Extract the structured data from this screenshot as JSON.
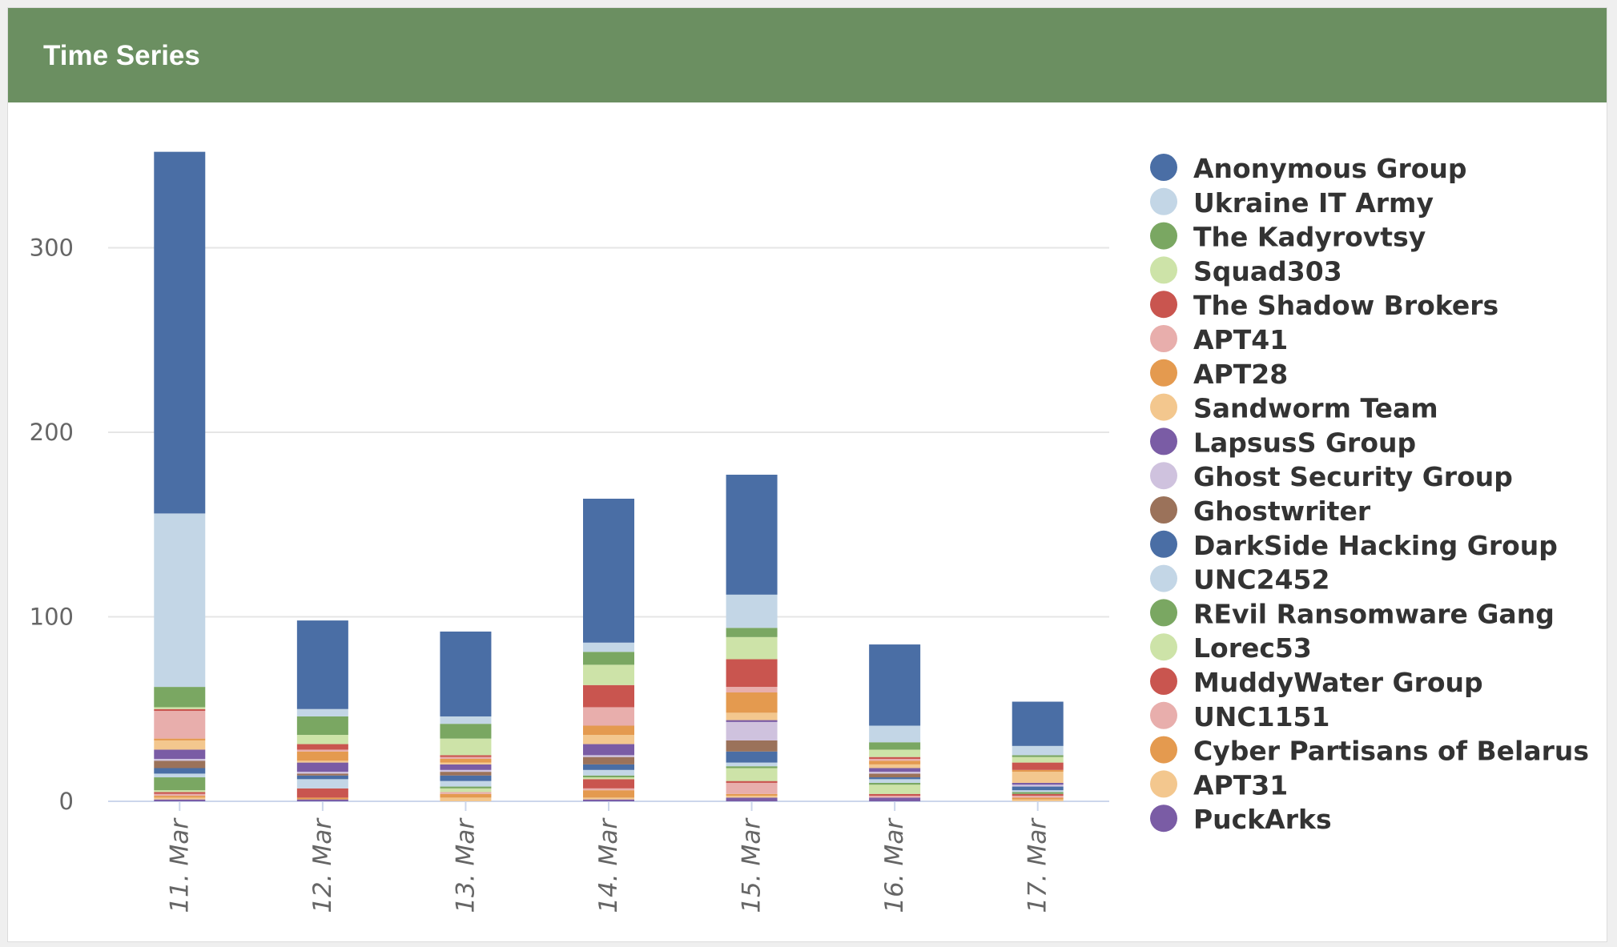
{
  "panel": {
    "title": "Time Series"
  },
  "colors": {
    "header_bg": "#6b8f61",
    "grid": "#e6e6e6",
    "axis": "#ccd6eb"
  },
  "chart_data": {
    "type": "bar",
    "stacked": true,
    "categories": [
      "11. Mar",
      "12. Mar",
      "13. Mar",
      "14. Mar",
      "15. Mar",
      "16. Mar",
      "17. Mar"
    ],
    "yticks": [
      0,
      100,
      200,
      300
    ],
    "ylim": [
      0,
      345
    ],
    "legend_position": "right",
    "grid": true,
    "series": [
      {
        "name": "PuckArks",
        "color": "#7a5ca5",
        "values": [
          1,
          1,
          0,
          1,
          2,
          2,
          0
        ]
      },
      {
        "name": "APT31",
        "color": "#f3c78e",
        "values": [
          1,
          0,
          2,
          1,
          1,
          0,
          1
        ]
      },
      {
        "name": "Cyber Partisans of Belarus",
        "color": "#e49a4f",
        "values": [
          1,
          1,
          2,
          4,
          1,
          0,
          1
        ]
      },
      {
        "name": "UNC1151",
        "color": "#e8aeac",
        "values": [
          1,
          0,
          1,
          1,
          6,
          1,
          1
        ]
      },
      {
        "name": "MuddyWater Group",
        "color": "#c9554f",
        "values": [
          1,
          5,
          0,
          5,
          1,
          1,
          1
        ]
      },
      {
        "name": "Lorec53",
        "color": "#cde3a8",
        "values": [
          1,
          0,
          2,
          1,
          7,
          5,
          0
        ]
      },
      {
        "name": "REvil Ransomware Gang",
        "color": "#7aa762",
        "values": [
          7,
          0,
          1,
          1,
          1,
          1,
          1
        ]
      },
      {
        "name": "UNC2452",
        "color": "#c3d6e6",
        "values": [
          2,
          5,
          3,
          3,
          2,
          2,
          1
        ]
      },
      {
        "name": "DarkSide Hacking Group",
        "color": "#4a6ea5",
        "values": [
          3,
          2,
          3,
          3,
          6,
          1,
          2
        ]
      },
      {
        "name": "Ghostwriter",
        "color": "#9b725a",
        "values": [
          4,
          1,
          2,
          4,
          6,
          2,
          0
        ]
      },
      {
        "name": "Ghost Security Group",
        "color": "#cfc2de",
        "values": [
          1,
          1,
          1,
          1,
          10,
          1,
          1
        ]
      },
      {
        "name": "LapsusS Group",
        "color": "#7a5ca5",
        "values": [
          5,
          5,
          3,
          6,
          1,
          2,
          1
        ]
      },
      {
        "name": "Sandworm Team",
        "color": "#f3c78e",
        "values": [
          5,
          1,
          1,
          5,
          4,
          2,
          6
        ]
      },
      {
        "name": "APT28",
        "color": "#e49a4f",
        "values": [
          1,
          5,
          2,
          5,
          11,
          2,
          1
        ]
      },
      {
        "name": "APT41",
        "color": "#e8aeac",
        "values": [
          15,
          1,
          1,
          10,
          3,
          1,
          0
        ]
      },
      {
        "name": "The Shadow Brokers",
        "color": "#c9554f",
        "values": [
          1,
          3,
          1,
          12,
          15,
          1,
          4
        ]
      },
      {
        "name": "Squad303",
        "color": "#cde3a8",
        "values": [
          1,
          5,
          9,
          11,
          12,
          4,
          3
        ]
      },
      {
        "name": "The Kadyrovtsy",
        "color": "#7aa762",
        "values": [
          11,
          10,
          8,
          7,
          5,
          4,
          1
        ]
      },
      {
        "name": "Ukraine IT Army",
        "color": "#c3d6e6",
        "values": [
          94,
          4,
          4,
          5,
          18,
          9,
          5
        ]
      },
      {
        "name": "Anonymous Group",
        "color": "#4a6ea5",
        "values": [
          196,
          48,
          46,
          78,
          65,
          44,
          24
        ]
      }
    ]
  }
}
